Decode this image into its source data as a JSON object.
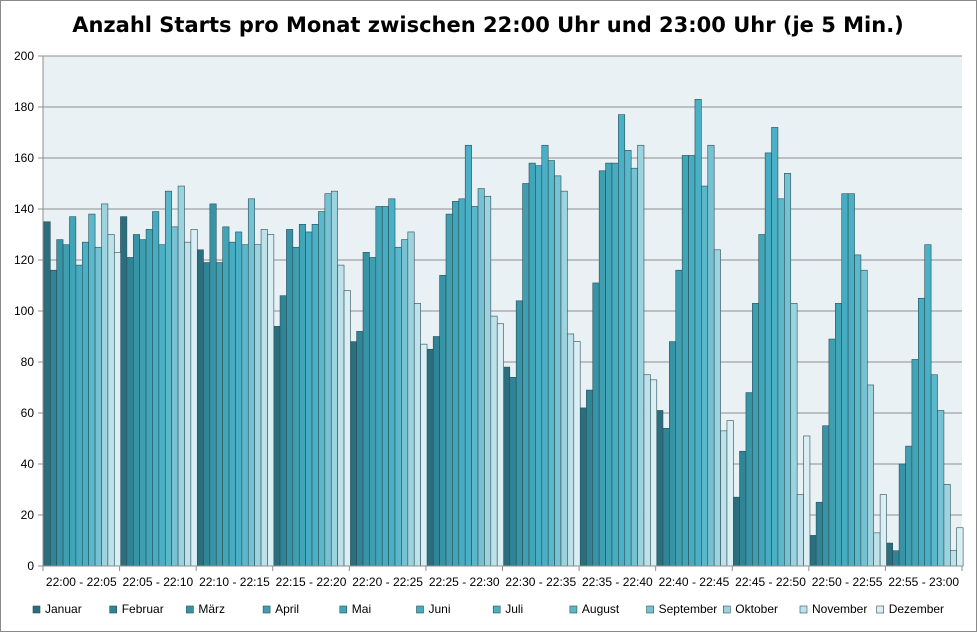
{
  "chart_data": {
    "type": "bar",
    "title": "Anzahl Starts pro Monat zwischen 22:00 Uhr und 23:00 Uhr (je 5 Min.)",
    "xlabel": "",
    "ylabel": "",
    "ylim": [
      0,
      200
    ],
    "yticks": [
      0,
      20,
      40,
      60,
      80,
      100,
      120,
      140,
      160,
      180,
      200
    ],
    "grid": true,
    "legend_position": "bottom",
    "plot_background": "#eaf1f4",
    "categories": [
      "22:00 - 22:05",
      "22:05 - 22:10",
      "22:10 - 22:15",
      "22:15 - 22:20",
      "22:20 - 22:25",
      "22:25 - 22:30",
      "22:30 - 22:35",
      "22:35 - 22:40",
      "22:40 - 22:45",
      "22:45 - 22:50",
      "22:50 - 22:55",
      "22:55 - 23:00"
    ],
    "series": [
      {
        "name": "Januar",
        "color": "#2b6f7f",
        "values": [
          135,
          137,
          124,
          94,
          88,
          85,
          78,
          62,
          61,
          27,
          12,
          9
        ]
      },
      {
        "name": "Februar",
        "color": "#2f8596",
        "values": [
          116,
          121,
          119,
          106,
          92,
          90,
          74,
          69,
          54,
          45,
          25,
          6
        ]
      },
      {
        "name": "März",
        "color": "#3794a6",
        "values": [
          128,
          130,
          142,
          132,
          123,
          114,
          104,
          111,
          88,
          68,
          55,
          40
        ]
      },
      {
        "name": "April",
        "color": "#3f9fb1",
        "values": [
          126,
          128,
          119,
          125,
          121,
          138,
          150,
          155,
          116,
          103,
          89,
          47
        ]
      },
      {
        "name": "Mai",
        "color": "#41a5b8",
        "values": [
          137,
          132,
          133,
          134,
          141,
          143,
          158,
          158,
          161,
          130,
          103,
          81
        ]
      },
      {
        "name": "Juni",
        "color": "#46acc1",
        "values": [
          118,
          139,
          127,
          131,
          141,
          144,
          157,
          158,
          161,
          162,
          146,
          105
        ]
      },
      {
        "name": "Juli",
        "color": "#4ab0c6",
        "values": [
          127,
          126,
          131,
          134,
          144,
          165,
          165,
          177,
          183,
          172,
          146,
          126
        ]
      },
      {
        "name": "August",
        "color": "#5bb8cb",
        "values": [
          138,
          147,
          126,
          139,
          125,
          141,
          159,
          163,
          149,
          144,
          122,
          75
        ]
      },
      {
        "name": "September",
        "color": "#76c2d3",
        "values": [
          125,
          133,
          144,
          146,
          128,
          148,
          153,
          156,
          165,
          154,
          116,
          61
        ]
      },
      {
        "name": "Oktober",
        "color": "#9dd3df",
        "values": [
          142,
          149,
          126,
          147,
          131,
          145,
          147,
          165,
          124,
          103,
          71,
          32
        ]
      },
      {
        "name": "November",
        "color": "#bfe2ea",
        "values": [
          130,
          127,
          132,
          118,
          103,
          98,
          91,
          75,
          53,
          28,
          13,
          6
        ]
      },
      {
        "name": "Dezember",
        "color": "#daeff4",
        "values": [
          123,
          132,
          130,
          108,
          87,
          95,
          88,
          73,
          57,
          51,
          28,
          15
        ]
      }
    ]
  }
}
